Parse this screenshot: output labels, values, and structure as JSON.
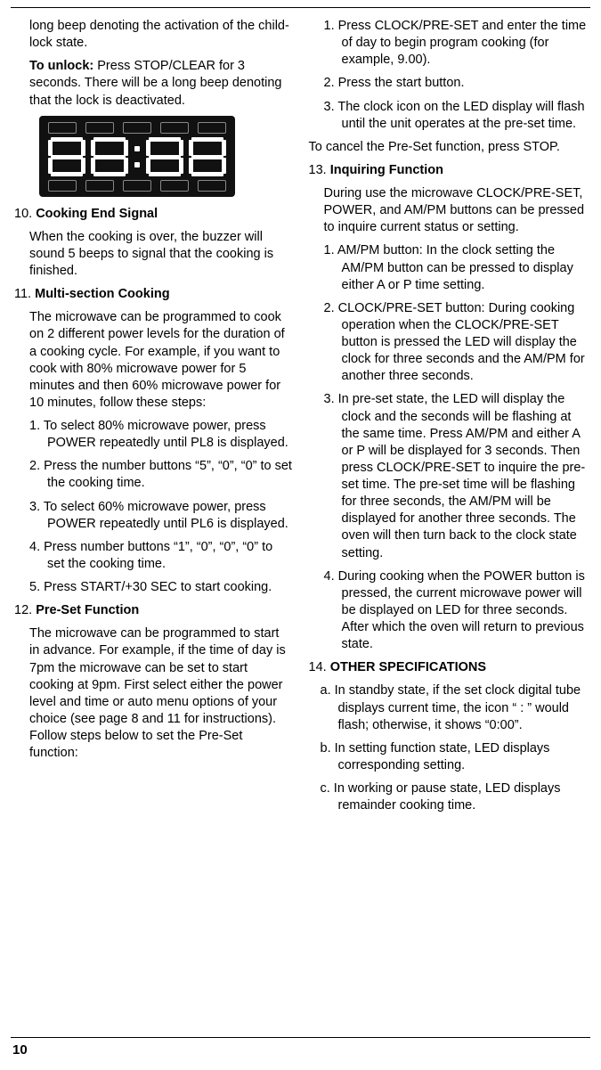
{
  "page_number": "10",
  "led_display": {
    "bg_color": "#111111",
    "segment_color": "#ffffff",
    "digits": [
      "8",
      "8",
      "8",
      "8"
    ],
    "top_icons": [
      "",
      "",
      "",
      ""
    ],
    "bot_icons": [
      "",
      "",
      "",
      ""
    ]
  },
  "left": {
    "intro1": "long beep denoting the activation of the child-lock state.",
    "unlock_label": "To unlock:",
    "unlock_rest": " Press STOP/CLEAR for 3 seconds. There will be a long beep denoting that the lock is deactivated.",
    "s10_num": "10.",
    "s10_title": "Cooking End Signal",
    "s10_body": "When the cooking is over, the buzzer will sound 5 beeps to signal that the cooking is finished.",
    "s11_num": "11.",
    "s11_title": "Multi-section Cooking",
    "s11_body": "The microwave can be programmed to cook on 2 different power levels for the duration of a cooking cycle. For example, if you want to cook with 80% microwave power for 5 minutes and then 60% microwave power for 10 minutes, follow these steps:",
    "s11_1": "1. To select 80% microwave power, press POWER repeatedly until PL8 is displayed.",
    "s11_2": "2. Press the number buttons “5”, “0”, “0” to set the cooking time.",
    "s11_3": "3. To select 60% microwave power, press POWER repeatedly until PL6 is displayed.",
    "s11_4": "4. Press number buttons “1”, “0”, “0”, “0” to set the cooking time.",
    "s11_5": "5. Press START/+30 SEC to start cooking.",
    "s12_num": "12.",
    "s12_title": "Pre-Set Function",
    "s12_body": "The microwave can be programmed to start in advance. For example, if the time of day is 7pm the microwave can be set to start cooking at 9pm. First select either the power level and time or auto menu options of your choice (see page 8 and 11 for instructions). Follow steps below to set the Pre-Set function:",
    "s12_1": "1. Press CLOCK/PRE-SET and enter the time of day to begin program cooking (for example, 9.00).",
    "s12_2": "2. Press the start button."
  },
  "right": {
    "s12_3": "3. The clock icon on the LED display will flash until the unit operates at the pre-set time.",
    "s12_cancel": "To cancel the Pre-Set function, press STOP.",
    "s13_num": "13.",
    "s13_title": "Inquiring Function",
    "s13_body": "During use the microwave CLOCK/PRE-SET, POWER, and AM/PM buttons can be pressed to inquire current status or setting.",
    "s13_1": "1. AM/PM button: In the clock setting the AM/PM button can be pressed to display either A or P time setting.",
    "s13_2": "2. CLOCK/PRE-SET button: During cooking operation when the CLOCK/PRE-SET button is pressed the LED will display the clock for three seconds and the AM/PM for another three seconds.",
    "s13_3": "3. In pre-set state, the LED will display the clock and the seconds will be flashing at the same time. Press AM/PM and either A or P will be displayed for 3 seconds. Then press CLOCK/PRE-SET to inquire the pre-set time. The pre-set time will be flashing for three seconds, the AM/PM will be displayed for another three seconds. The oven will then turn back to the clock state setting.",
    "s13_4": "4. During cooking when the POWER button is pressed, the current microwave power will be displayed on LED for three seconds. After which the oven will return to previous state.",
    "s14_num": "14.",
    "s14_title": "OTHER SPECIFICATIONS",
    "s14_a": "a. In standby state, if the set clock digital tube displays current time, the icon “ : ” would flash; otherwise, it shows “0:00”.",
    "s14_b": "b. In setting function state, LED displays corresponding setting.",
    "s14_c": "c. In working or pause state, LED displays remainder cooking time."
  }
}
